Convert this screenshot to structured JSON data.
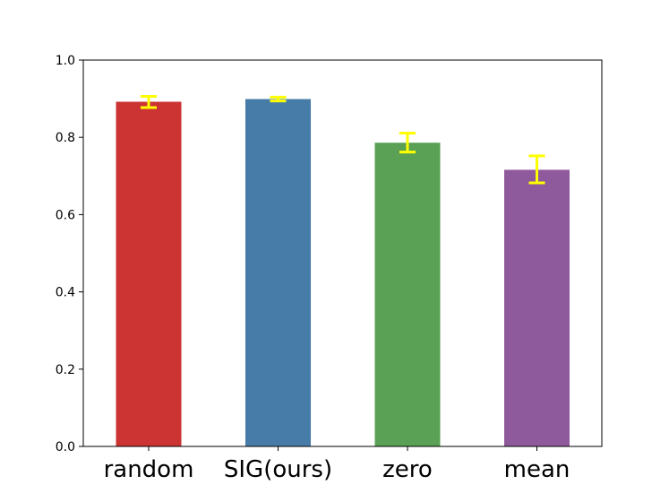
{
  "chart_data": {
    "type": "bar",
    "title": "",
    "xlabel": "",
    "ylabel": "",
    "categories": [
      "random",
      "SIG(ours)",
      "zero",
      "mean"
    ],
    "values": [
      0.892,
      0.899,
      0.786,
      0.716
    ],
    "error_low": [
      0.877,
      0.894,
      0.762,
      0.682
    ],
    "error_high": [
      0.906,
      0.904,
      0.811,
      0.752
    ],
    "bar_colors": [
      "#cc3333",
      "#477ca9",
      "#5aa155",
      "#8f5a9b"
    ],
    "error_color": "#ffff00",
    "ylim": [
      0,
      1.0
    ],
    "yticks": [
      0.0,
      0.2,
      0.4,
      0.6,
      0.8,
      1.0
    ],
    "ytick_labels": [
      "0.0",
      "0.2",
      "0.4",
      "0.6",
      "0.8",
      "1.0"
    ],
    "grid": false,
    "legend": "none"
  }
}
